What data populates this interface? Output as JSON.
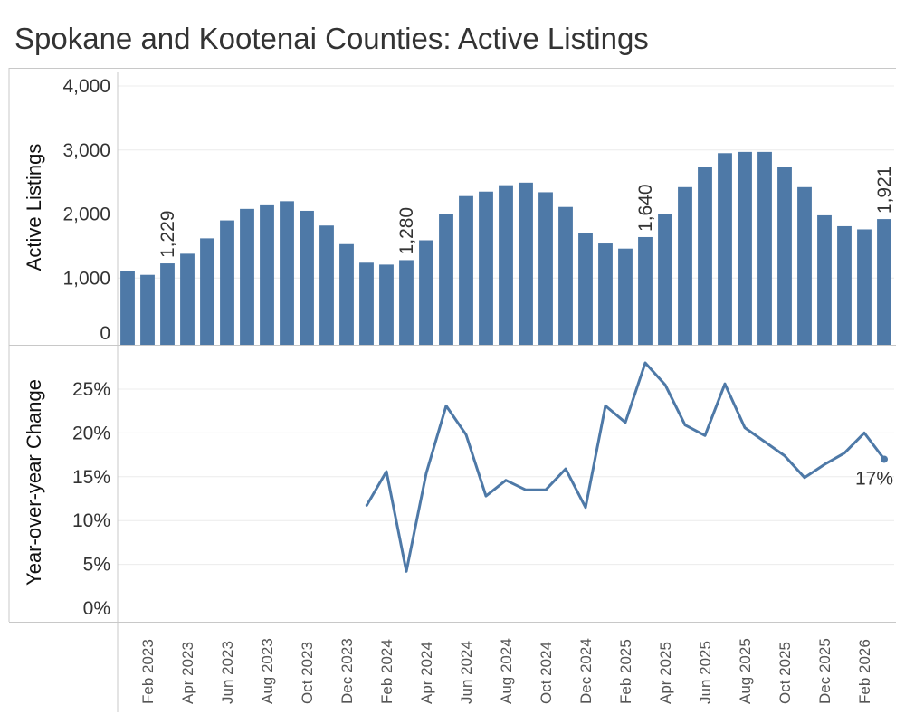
{
  "title": "Spokane and Kootenai Counties: Active Listings",
  "colors": {
    "bar": "#4e79a7",
    "line": "#4e79a7",
    "grid": "#ececec",
    "axis": "#c8c8c8"
  },
  "chart_data": [
    {
      "type": "bar",
      "ylabel": "Active Listings",
      "ylim": [
        0,
        4000
      ],
      "yticks": [
        0,
        1000,
        2000,
        3000,
        4000
      ],
      "ytick_labels": [
        "0",
        "1,000",
        "2,000",
        "3,000",
        "4,000"
      ],
      "categories": [
        "Jan 2023",
        "Feb 2023",
        "Mar 2023",
        "Apr 2023",
        "May 2023",
        "Jun 2023",
        "Jul 2023",
        "Aug 2023",
        "Sep 2023",
        "Oct 2023",
        "Nov 2023",
        "Dec 2023",
        "Jan 2024",
        "Feb 2024",
        "Mar 2024",
        "Apr 2024",
        "May 2024",
        "Jun 2024",
        "Jul 2024",
        "Aug 2024",
        "Sep 2024",
        "Oct 2024",
        "Nov 2024",
        "Dec 2024",
        "Jan 2025",
        "Feb 2025",
        "Mar 2025",
        "Apr 2025",
        "May 2025",
        "Jun 2025",
        "Jul 2025",
        "Aug 2025",
        "Sep 2025",
        "Oct 2025",
        "Nov 2025",
        "Dec 2025",
        "Jan 2026",
        "Feb 2026",
        "Mar 2026"
      ],
      "values": [
        1110,
        1050,
        1229,
        1380,
        1620,
        1900,
        2080,
        2150,
        2200,
        2050,
        1820,
        1530,
        1240,
        1210,
        1280,
        1590,
        2000,
        2280,
        2350,
        2450,
        2490,
        2340,
        2110,
        1700,
        1540,
        1460,
        1640,
        2000,
        2420,
        2730,
        2950,
        2970,
        2970,
        2740,
        2420,
        1980,
        1810,
        1760,
        1921
      ],
      "data_labels": [
        {
          "category": "Mar 2023",
          "text": "1,229"
        },
        {
          "category": "Mar 2024",
          "text": "1,280"
        },
        {
          "category": "Mar 2025",
          "text": "1,640"
        },
        {
          "category": "Mar 2026",
          "text": "1,921"
        }
      ],
      "grid": true
    },
    {
      "type": "line",
      "ylabel": "Year-over-year Change",
      "ylim": [
        0,
        29
      ],
      "yticks": [
        0,
        5,
        10,
        15,
        20,
        25
      ],
      "ytick_labels": [
        "0%",
        "5%",
        "10%",
        "15%",
        "20%",
        "25%"
      ],
      "x": [
        "Jan 2024",
        "Feb 2024",
        "Mar 2024",
        "Apr 2024",
        "May 2024",
        "Jun 2024",
        "Jul 2024",
        "Aug 2024",
        "Sep 2024",
        "Oct 2024",
        "Nov 2024",
        "Dec 2024",
        "Jan 2025",
        "Feb 2025",
        "Mar 2025",
        "Apr 2025",
        "May 2025",
        "Jun 2025",
        "Jul 2025",
        "Aug 2025",
        "Sep 2025",
        "Oct 2025",
        "Nov 2025",
        "Dec 2025",
        "Jan 2026",
        "Feb 2026",
        "Mar 2026"
      ],
      "values": [
        11.7,
        15.6,
        4.2,
        15.4,
        23.1,
        19.8,
        12.8,
        14.6,
        13.5,
        13.5,
        15.9,
        11.5,
        23.1,
        21.2,
        28.0,
        25.5,
        20.9,
        19.7,
        25.6,
        20.6,
        19.0,
        17.4,
        14.9,
        16.4,
        17.7,
        20.0,
        17.0
      ],
      "data_labels": [
        {
          "x": "Mar 2026",
          "text": "17%"
        }
      ],
      "grid": true
    }
  ],
  "x_axis": {
    "ticks": [
      "Feb 2023",
      "Apr 2023",
      "Jun 2023",
      "Aug 2023",
      "Oct 2023",
      "Dec 2023",
      "Feb 2024",
      "Apr 2024",
      "Jun 2024",
      "Aug 2024",
      "Oct 2024",
      "Dec 2024",
      "Feb 2025",
      "Apr 2025",
      "Jun 2025",
      "Aug 2025",
      "Oct 2025",
      "Dec 2025",
      "Feb 2026"
    ]
  }
}
